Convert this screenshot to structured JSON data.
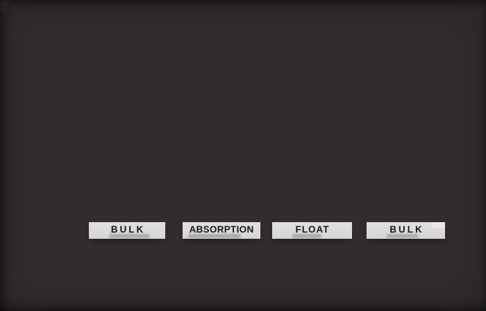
{
  "stages": [
    {
      "label": "BULK"
    },
    {
      "label": "ABSORPTION"
    },
    {
      "label": "FLOAT"
    },
    {
      "label": "BULK"
    }
  ],
  "colors": {
    "panel_background": "#322d2d",
    "indicator_background": "#dcdbd9",
    "label_text": "#1b1818",
    "glare_highlight": "#eceae9"
  }
}
